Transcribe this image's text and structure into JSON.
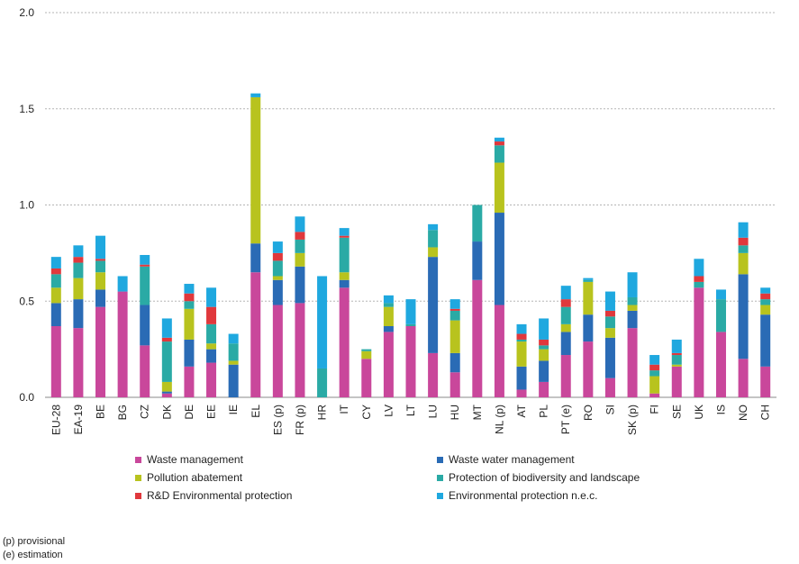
{
  "chart_data": {
    "type": "bar",
    "stacked": true,
    "title": "",
    "xlabel": "",
    "ylabel": "",
    "ylim": [
      0,
      2.0
    ],
    "yticks": [
      "0.0",
      "0.5",
      "1.0",
      "1.5",
      "2.0"
    ],
    "grid": true,
    "legend_position": "bottom",
    "categories": [
      "EU-28",
      "EA-19",
      "BE",
      "BG",
      "CZ",
      "DK",
      "DE",
      "EE",
      "IE",
      "EL",
      "ES (p)",
      "FR (p)",
      "HR",
      "IT",
      "CY",
      "LV",
      "LT",
      "LU",
      "HU",
      "MT",
      "NL (p)",
      "AT",
      "PL",
      "PT (e)",
      "RO",
      "SI",
      "SK (p)",
      "FI",
      "SE",
      "UK",
      "IS",
      "NO",
      "CH"
    ],
    "series": [
      {
        "name": "Waste management",
        "color": "#c9479b",
        "values": [
          0.37,
          0.36,
          0.47,
          0.55,
          0.27,
          0.02,
          0.16,
          0.18,
          0.0,
          0.65,
          0.48,
          0.49,
          0.0,
          0.57,
          0.2,
          0.34,
          0.37,
          0.23,
          0.13,
          0.61,
          0.48,
          0.04,
          0.08,
          0.22,
          0.29,
          0.1,
          0.36,
          0.02,
          0.16,
          0.57,
          0.34,
          0.2,
          0.16
        ]
      },
      {
        "name": "Waste water management",
        "color": "#2a6bb5",
        "values": [
          0.12,
          0.15,
          0.09,
          0.0,
          0.21,
          0.01,
          0.14,
          0.07,
          0.17,
          0.15,
          0.13,
          0.19,
          0.0,
          0.04,
          0.0,
          0.03,
          0.0,
          0.5,
          0.1,
          0.2,
          0.48,
          0.12,
          0.11,
          0.12,
          0.14,
          0.21,
          0.09,
          0.0,
          0.0,
          0.0,
          0.0,
          0.44,
          0.27
        ]
      },
      {
        "name": "Pollution abatement",
        "color": "#b8c31e",
        "values": [
          0.08,
          0.11,
          0.09,
          0.0,
          0.0,
          0.05,
          0.16,
          0.03,
          0.02,
          0.76,
          0.02,
          0.07,
          0.0,
          0.04,
          0.04,
          0.1,
          0.0,
          0.05,
          0.17,
          0.0,
          0.26,
          0.13,
          0.06,
          0.04,
          0.17,
          0.05,
          0.03,
          0.09,
          0.01,
          0.0,
          0.0,
          0.11,
          0.05
        ]
      },
      {
        "name": "Protection of biodiversity and landscape",
        "color": "#2aaaa5",
        "values": [
          0.07,
          0.08,
          0.06,
          0.0,
          0.2,
          0.21,
          0.04,
          0.1,
          0.09,
          0.0,
          0.08,
          0.07,
          0.15,
          0.18,
          0.01,
          0.02,
          0.01,
          0.09,
          0.05,
          0.19,
          0.09,
          0.01,
          0.02,
          0.09,
          0.01,
          0.06,
          0.04,
          0.03,
          0.05,
          0.03,
          0.17,
          0.04,
          0.03
        ]
      },
      {
        "name": "R&D Environmental protection",
        "color": "#e0383c",
        "values": [
          0.03,
          0.03,
          0.01,
          0.0,
          0.01,
          0.02,
          0.04,
          0.09,
          0.0,
          0.0,
          0.04,
          0.04,
          0.0,
          0.01,
          0.0,
          0.0,
          0.0,
          0.0,
          0.01,
          0.0,
          0.02,
          0.03,
          0.03,
          0.04,
          0.0,
          0.03,
          0.0,
          0.03,
          0.01,
          0.03,
          0.0,
          0.04,
          0.03
        ]
      },
      {
        "name": "Environmental protection n.e.c.",
        "color": "#1fa8df",
        "values": [
          0.06,
          0.06,
          0.12,
          0.08,
          0.05,
          0.1,
          0.05,
          0.1,
          0.05,
          0.02,
          0.06,
          0.08,
          0.48,
          0.04,
          0.0,
          0.04,
          0.13,
          0.03,
          0.05,
          0.0,
          0.02,
          0.05,
          0.11,
          0.07,
          0.01,
          0.1,
          0.13,
          0.05,
          0.07,
          0.09,
          0.05,
          0.08,
          0.03
        ]
      }
    ]
  },
  "notes": [
    "(p) provisional",
    "(e) estimation"
  ]
}
